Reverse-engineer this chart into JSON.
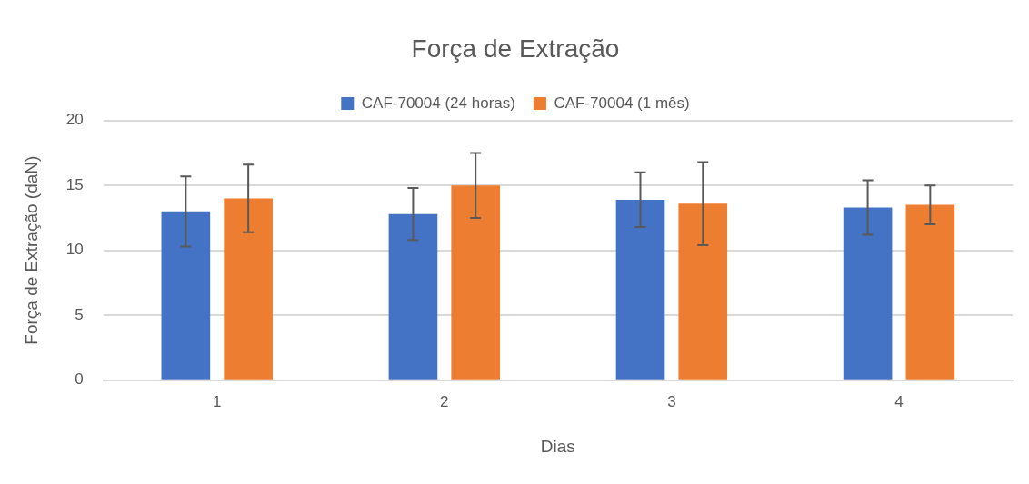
{
  "chart_data": {
    "type": "bar",
    "title": "Força de Extração",
    "xlabel": "Dias",
    "ylabel": "Força de Extração (daN)",
    "categories": [
      "1",
      "2",
      "3",
      "4"
    ],
    "series": [
      {
        "name": "CAF-70004 (24 horas)",
        "color": "#4472c4",
        "values": [
          13.0,
          12.8,
          13.9,
          13.3
        ],
        "errors": [
          2.7,
          2.0,
          2.1,
          2.1
        ]
      },
      {
        "name": "CAF-70004 (1 mês)",
        "color": "#ed7d31",
        "values": [
          14.0,
          15.0,
          13.6,
          13.5
        ],
        "errors": [
          2.6,
          2.5,
          3.2,
          1.5
        ]
      }
    ],
    "ylim": [
      0,
      20
    ],
    "yticks": [
      0,
      5,
      10,
      15,
      20
    ],
    "grid": "y",
    "legend": "top"
  }
}
